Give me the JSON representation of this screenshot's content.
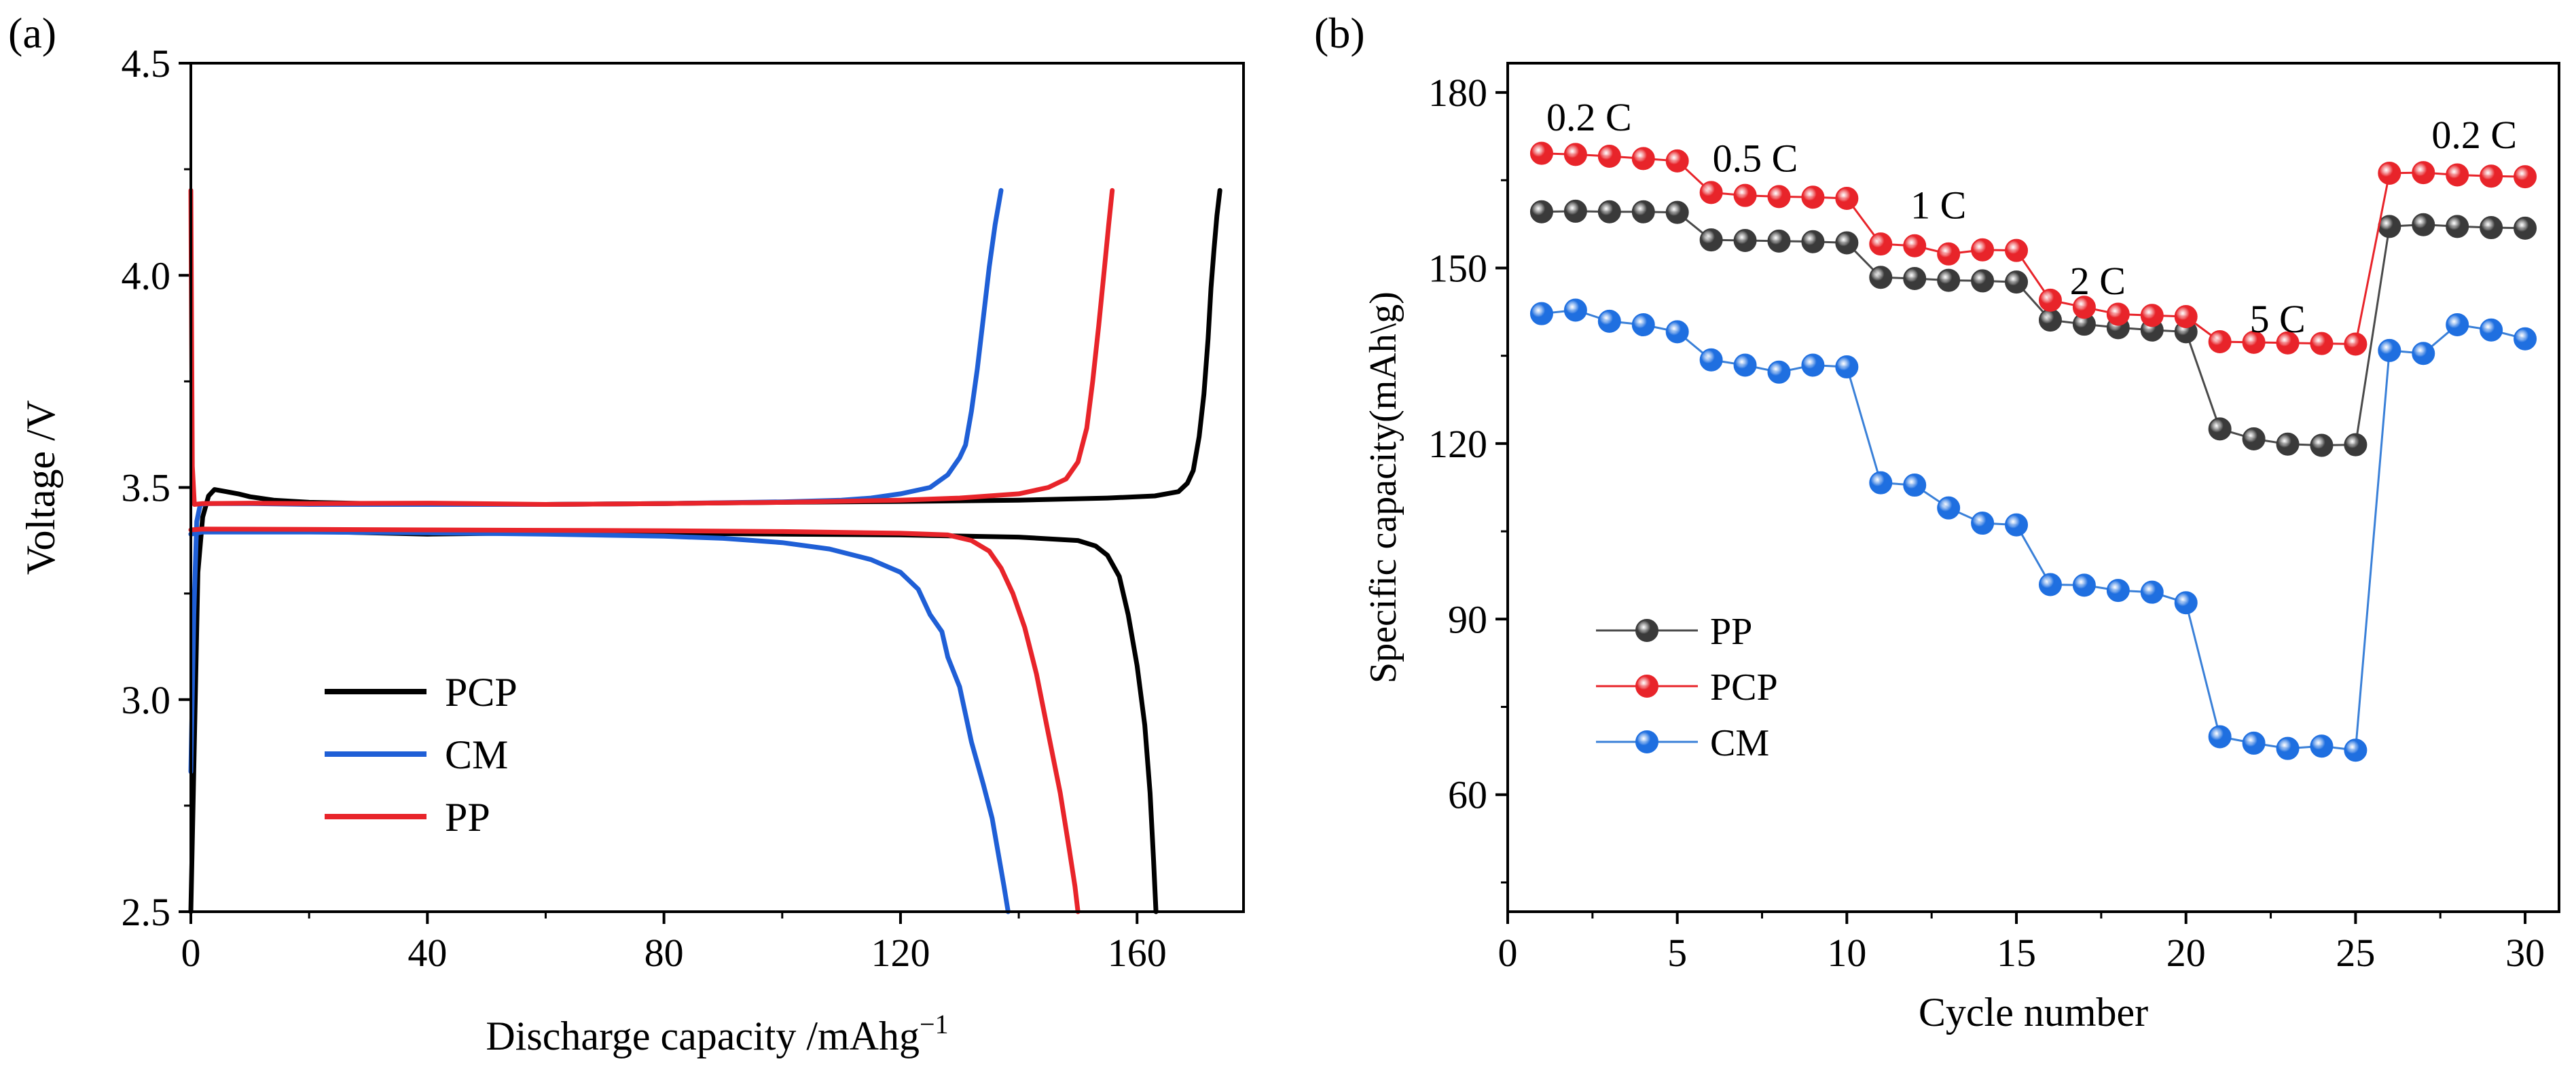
{
  "colors": {
    "PCP_a": "#000000",
    "CM": "#1f5fd6",
    "PP_a": "#e8242a",
    "axis": "#000000"
  },
  "chart_data": [
    {
      "panel": "(a)",
      "type": "line",
      "xlabel_main": "Discharge capacity /mAhg",
      "xlabel_sup": "−1",
      "ylabel": "Voltage /V",
      "xlim": [
        0,
        178
      ],
      "ylim": [
        2.5,
        4.5
      ],
      "xticks": [
        0,
        40,
        80,
        120,
        160
      ],
      "xtick_labels": [
        "0",
        "40",
        "80",
        "120",
        "160"
      ],
      "yticks": [
        2.5,
        3.0,
        3.5,
        4.0,
        4.5
      ],
      "ytick_labels": [
        "2.5",
        "3.0",
        "3.5",
        "4.0",
        "4.5"
      ],
      "legend_position": "lower-left",
      "series": [
        {
          "name": "PCP",
          "color_key": "PCP_a",
          "charge": [
            [
              0,
              2.5
            ],
            [
              0.6,
              2.9
            ],
            [
              1.2,
              3.3
            ],
            [
              2,
              3.43
            ],
            [
              3,
              3.48
            ],
            [
              4,
              3.495
            ],
            [
              6,
              3.49
            ],
            [
              8,
              3.485
            ],
            [
              10,
              3.478
            ],
            [
              14,
              3.47
            ],
            [
              20,
              3.465
            ],
            [
              30,
              3.462
            ],
            [
              40,
              3.46
            ],
            [
              60,
              3.46
            ],
            [
              80,
              3.462
            ],
            [
              100,
              3.465
            ],
            [
              120,
              3.467
            ],
            [
              140,
              3.47
            ],
            [
              155,
              3.475
            ],
            [
              163,
              3.48
            ],
            [
              167,
              3.49
            ],
            [
              168.5,
              3.51
            ],
            [
              169.5,
              3.54
            ],
            [
              170.5,
              3.62
            ],
            [
              171.3,
              3.72
            ],
            [
              172,
              3.85
            ],
            [
              172.5,
              3.97
            ],
            [
              173,
              4.06
            ],
            [
              173.5,
              4.14
            ],
            [
              174,
              4.2
            ]
          ],
          "discharge": [
            [
              0,
              3.39
            ],
            [
              2,
              3.4
            ],
            [
              10,
              3.4
            ],
            [
              40,
              3.39
            ],
            [
              60,
              3.393
            ],
            [
              80,
              3.392
            ],
            [
              100,
              3.39
            ],
            [
              120,
              3.388
            ],
            [
              140,
              3.383
            ],
            [
              150,
              3.375
            ],
            [
              153,
              3.362
            ],
            [
              155,
              3.34
            ],
            [
              157,
              3.29
            ],
            [
              158.5,
              3.2
            ],
            [
              160,
              3.08
            ],
            [
              161.3,
              2.94
            ],
            [
              162.2,
              2.78
            ],
            [
              162.8,
              2.62
            ],
            [
              163.2,
              2.5
            ]
          ]
        },
        {
          "name": "CM",
          "color_key": "CM",
          "charge": [
            [
              0,
              2.83
            ],
            [
              0.5,
              3.2
            ],
            [
              1,
              3.42
            ],
            [
              1.6,
              3.46
            ],
            [
              3,
              3.462
            ],
            [
              10,
              3.462
            ],
            [
              20,
              3.46
            ],
            [
              40,
              3.46
            ],
            [
              60,
              3.46
            ],
            [
              80,
              3.462
            ],
            [
              100,
              3.466
            ],
            [
              110,
              3.47
            ],
            [
              115,
              3.475
            ],
            [
              120,
              3.485
            ],
            [
              125,
              3.5
            ],
            [
              128,
              3.53
            ],
            [
              130,
              3.57
            ],
            [
              131,
              3.6
            ],
            [
              132,
              3.68
            ],
            [
              133,
              3.78
            ],
            [
              134,
              3.9
            ],
            [
              135,
              4.02
            ],
            [
              136,
              4.12
            ],
            [
              137,
              4.2
            ]
          ],
          "discharge": [
            [
              0,
              3.39
            ],
            [
              2,
              3.395
            ],
            [
              20,
              3.395
            ],
            [
              40,
              3.393
            ],
            [
              60,
              3.39
            ],
            [
              80,
              3.385
            ],
            [
              90,
              3.38
            ],
            [
              100,
              3.37
            ],
            [
              108,
              3.355
            ],
            [
              115,
              3.33
            ],
            [
              120,
              3.3
            ],
            [
              123,
              3.26
            ],
            [
              125,
              3.2
            ],
            [
              127,
              3.16
            ],
            [
              128,
              3.1
            ],
            [
              130,
              3.03
            ],
            [
              132,
              2.9
            ],
            [
              134,
              2.8
            ],
            [
              135.5,
              2.72
            ],
            [
              136.5,
              2.64
            ],
            [
              137.5,
              2.56
            ],
            [
              138.2,
              2.5
            ]
          ]
        },
        {
          "name": "PP",
          "color_key": "PP_a",
          "charge": [
            [
              0,
              4.2
            ],
            [
              0.25,
              3.55
            ],
            [
              0.6,
              3.46
            ],
            [
              2,
              3.462
            ],
            [
              10,
              3.463
            ],
            [
              20,
              3.462
            ],
            [
              40,
              3.463
            ],
            [
              60,
              3.46
            ],
            [
              80,
              3.462
            ],
            [
              100,
              3.465
            ],
            [
              120,
              3.47
            ],
            [
              130,
              3.475
            ],
            [
              140,
              3.485
            ],
            [
              145,
              3.5
            ],
            [
              148,
              3.52
            ],
            [
              150,
              3.56
            ],
            [
              151.5,
              3.64
            ],
            [
              152.5,
              3.75
            ],
            [
              153.5,
              3.88
            ],
            [
              154.5,
              4.02
            ],
            [
              155.2,
              4.12
            ],
            [
              155.8,
              4.2
            ]
          ],
          "discharge": [
            [
              0,
              3.4
            ],
            [
              2,
              3.402
            ],
            [
              20,
              3.401
            ],
            [
              40,
              3.4
            ],
            [
              60,
              3.399
            ],
            [
              80,
              3.398
            ],
            [
              100,
              3.396
            ],
            [
              120,
              3.392
            ],
            [
              128,
              3.388
            ],
            [
              132,
              3.375
            ],
            [
              135,
              3.35
            ],
            [
              137,
              3.31
            ],
            [
              139,
              3.25
            ],
            [
              141,
              3.17
            ],
            [
              143,
              3.06
            ],
            [
              145,
              2.92
            ],
            [
              147,
              2.78
            ],
            [
              148.5,
              2.65
            ],
            [
              149.5,
              2.56
            ],
            [
              150,
              2.5
            ]
          ]
        }
      ]
    },
    {
      "panel": "(b)",
      "type": "line",
      "xlabel": "Cycle number",
      "ylabel": "Specific capacity(mAh\\g)",
      "xlim": [
        0,
        31
      ],
      "ylim": [
        40,
        185
      ],
      "xticks": [
        0,
        5,
        10,
        15,
        20,
        25,
        30
      ],
      "xtick_labels": [
        "0",
        "5",
        "10",
        "15",
        "20",
        "25",
        "30"
      ],
      "yticks": [
        60,
        90,
        120,
        150,
        180
      ],
      "ytick_labels": [
        "60",
        "90",
        "120",
        "150",
        "180"
      ],
      "legend_position": "lower-left",
      "rate_labels": [
        {
          "text": "0.2 C",
          "x": 2.4,
          "y": 173.5
        },
        {
          "text": "0.5 C",
          "x": 7.3,
          "y": 166.5
        },
        {
          "text": "1 C",
          "x": 12.7,
          "y": 158.5
        },
        {
          "text": "2 C",
          "x": 17.4,
          "y": 145.5
        },
        {
          "text": "5 C",
          "x": 22.7,
          "y": 139.0
        },
        {
          "text": "0.2 C",
          "x": 28.5,
          "y": 170.5
        }
      ],
      "x": [
        1,
        2,
        3,
        4,
        5,
        6,
        7,
        8,
        9,
        10,
        11,
        12,
        13,
        14,
        15,
        16,
        17,
        18,
        19,
        20,
        21,
        22,
        23,
        24,
        25,
        26,
        27,
        28,
        29,
        30
      ],
      "series": [
        {
          "name": "PP",
          "color": "#4a4a4a",
          "marker_fill": "#3a3a3a",
          "values": [
            159.6,
            159.7,
            159.6,
            159.6,
            159.5,
            154.8,
            154.7,
            154.6,
            154.5,
            154.3,
            148.4,
            148.2,
            147.9,
            147.8,
            147.6,
            141.1,
            140.4,
            139.8,
            139.4,
            139.1,
            122.5,
            120.8,
            119.9,
            119.7,
            119.8,
            157.1,
            157.4,
            157.1,
            156.9,
            156.8
          ]
        },
        {
          "name": "PCP",
          "color": "#e8242a",
          "marker_fill": "#e8242a",
          "values": [
            169.6,
            169.4,
            169.1,
            168.7,
            168.3,
            162.9,
            162.4,
            162.2,
            162.1,
            161.9,
            154.1,
            153.8,
            152.4,
            153.1,
            153.0,
            144.5,
            143.3,
            142.1,
            141.9,
            141.7,
            137.4,
            137.3,
            137.2,
            137.1,
            137.0,
            166.2,
            166.3,
            165.9,
            165.7,
            165.6
          ]
        },
        {
          "name": "CM",
          "color": "#3a80d8",
          "marker_fill": "#1f6fe0",
          "values": [
            142.2,
            142.8,
            140.9,
            140.3,
            139.1,
            134.3,
            133.4,
            132.2,
            133.4,
            133.1,
            113.3,
            112.9,
            109.0,
            106.4,
            106.1,
            95.9,
            95.8,
            94.9,
            94.6,
            92.8,
            69.9,
            68.8,
            67.9,
            68.3,
            67.6,
            135.9,
            135.4,
            140.3,
            139.4,
            137.9
          ]
        }
      ]
    }
  ]
}
